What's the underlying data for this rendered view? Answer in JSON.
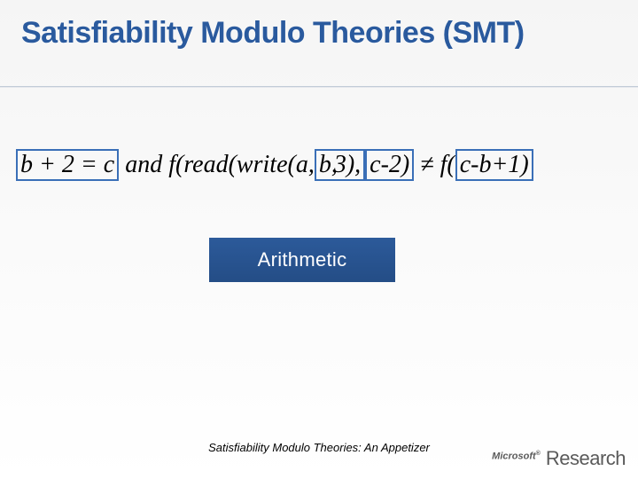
{
  "colors": {
    "title_color": "#2a5a9e",
    "highlight_border": "#3a6fb7",
    "label_bg_top": "#2c5a9a",
    "label_bg_bottom": "#244d86",
    "label_text": "#ffffff",
    "body_bg_top": "#f5f5f5",
    "body_bg_bottom": "#ffffff",
    "logo_color": "#5a5a5a"
  },
  "title": "Satisfiability Modulo Theories (SMT)",
  "formula": {
    "seg1_hl": "b + 2 = c",
    "seg2": "  and  f(read(write(a,",
    "seg3_hl_r": " b,",
    "seg4_hl_l": " 3),",
    "seg5_hl": " c-2)",
    "seg6": " ≠ f(",
    "seg7_hl": "c-b+1)"
  },
  "label": "Arithmetic",
  "footer": "Satisfiability Modulo Theories: An Appetizer",
  "logo": {
    "brand": "Microsoft",
    "sup": "®",
    "unit": "Research"
  },
  "typography": {
    "title_fontsize": 34,
    "formula_fontsize": 28,
    "label_fontsize": 22,
    "footer_fontsize": 13
  }
}
